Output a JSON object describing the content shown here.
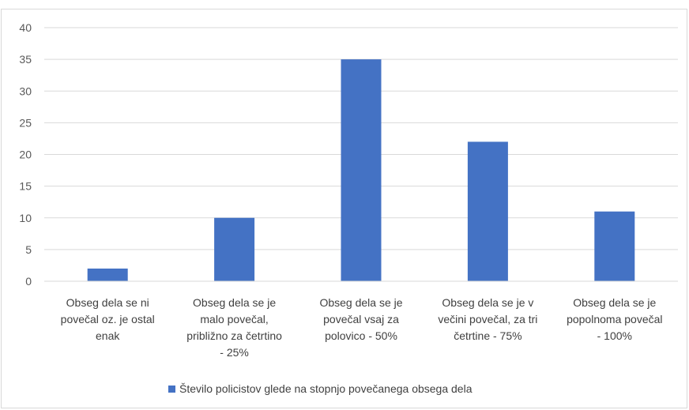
{
  "chart_data": {
    "type": "bar",
    "categories": [
      [
        "Obseg dela se ni",
        "povečal oz. je ostal",
        "enak"
      ],
      [
        "Obseg dela se je",
        "malo povečal,",
        "približno za četrtino",
        "- 25%"
      ],
      [
        "Obseg dela se je",
        "povečal vsaj za",
        "polovico - 50%"
      ],
      [
        "Obseg dela se je v",
        "večini povečal, za tri",
        "četrtine - 75%"
      ],
      [
        "Obseg dela se je",
        "popolnoma povečal",
        "- 100%"
      ]
    ],
    "series": [
      {
        "name": "Število policistov glede na stopnjo povečanega obsega dela",
        "values": [
          2,
          10,
          35,
          22,
          11
        ],
        "color": "#4472C4"
      }
    ],
    "ylim": [
      0,
      40
    ],
    "yticks": [
      0,
      5,
      10,
      15,
      20,
      25,
      30,
      35,
      40
    ],
    "grid": true,
    "legend_position": "bottom"
  }
}
